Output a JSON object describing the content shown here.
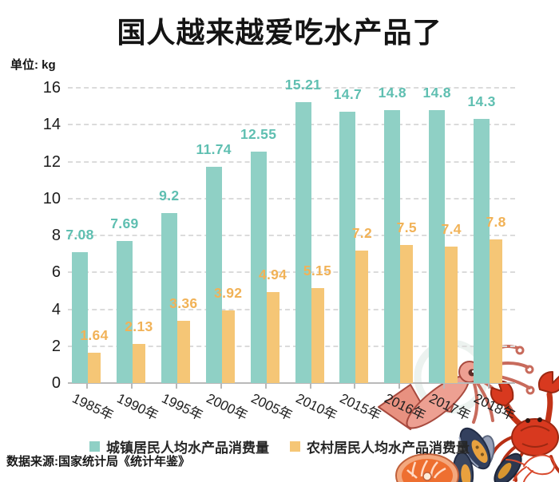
{
  "header": {
    "title": "国人越来越爱吃水产品了",
    "unit_label": "单位: kg"
  },
  "chart_data": {
    "type": "bar",
    "title": "国人越来越爱吃水产品了",
    "unit": "kg",
    "categories": [
      "1985年",
      "1990年",
      "1995年",
      "2000年",
      "2005年",
      "2010年",
      "2015年",
      "2016年",
      "2017年",
      "2018年"
    ],
    "series": [
      {
        "name": "城镇居民人均水产品消费量",
        "color": "#8fd0c5",
        "label_color": "#5fbfb1",
        "values": [
          7.08,
          7.69,
          9.2,
          11.74,
          12.55,
          15.21,
          14.7,
          14.8,
          14.8,
          14.3
        ]
      },
      {
        "name": "农村居民人均水产品消费量",
        "color": "#f5c676",
        "label_color": "#f1b257",
        "values": [
          1.64,
          2.13,
          3.36,
          3.92,
          4.94,
          5.15,
          7.2,
          7.5,
          7.4,
          7.8
        ]
      }
    ],
    "ylim": [
      0,
      16
    ],
    "ytick_step": 2,
    "grid": "horizontal-dashed",
    "legend_position": "bottom",
    "bar_value_labels": true,
    "xtick_rotation_deg": 26
  },
  "legend": {
    "items": [
      {
        "label": "城镇居民人均水产品消费量",
        "color": "#8fd0c5"
      },
      {
        "label": "农村居民人均水产品消费量",
        "color": "#f5c676"
      }
    ]
  },
  "footer": {
    "source": "数据来源:国家统计局《统计年鉴》"
  },
  "decoration": {
    "description": "hand-drawn seafood illustration cluster, bottom right",
    "items": [
      "squid",
      "crab",
      "mussels",
      "salmon-steak",
      "shrimp-sketch"
    ],
    "colors": {
      "squid": "#eda092",
      "crab": "#d8391f",
      "mussel_shell": "#33405e",
      "mussel_flesh": "#e9a13e",
      "salmon": "#ee6f30"
    }
  }
}
